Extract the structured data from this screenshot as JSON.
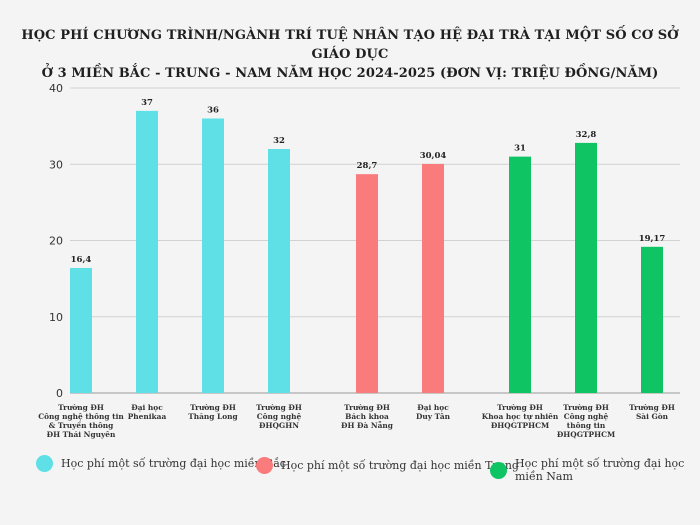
{
  "chart_data": {
    "type": "bar",
    "title_line1": "HỌC PHÍ CHƯƠNG TRÌNH/NGÀNH TRÍ TUỆ NHÂN TẠO HỆ ĐẠI TRÀ TẠI MỘT SỐ CƠ SỞ GIÁO DỤC",
    "title_line2": "Ở 3 MIỀN BẮC - TRUNG - NAM NĂM HỌC 2024-2025 (ĐƠN VỊ: TRIỆU ĐỒNG/NĂM)",
    "ylim": [
      0,
      40
    ],
    "yticks": [
      0,
      10,
      20,
      30,
      40
    ],
    "grid": true,
    "legend_position": "bottom",
    "series": [
      {
        "name": "Học phí một số trường đại học miền Bắc",
        "color": "#5ee0e6"
      },
      {
        "name": "Học phí một số trường đại học miền Trung",
        "color": "#fa7b7b"
      },
      {
        "name": "Học phí một số trường đại học miền Nam",
        "color": "#0ec463"
      }
    ],
    "bars": [
      {
        "label": [
          "Trường ĐH",
          "Công nghệ thông tin",
          "& Truyền thông",
          "ĐH Thái Nguyên"
        ],
        "value": 16.4,
        "display": "16,4",
        "series": 0
      },
      {
        "label": [
          "Đại học",
          "Phenikaa"
        ],
        "value": 37,
        "display": "37",
        "series": 0
      },
      {
        "label": [
          "Trường ĐH",
          "Thăng Long"
        ],
        "value": 36,
        "display": "36",
        "series": 0
      },
      {
        "label": [
          "Trường ĐH",
          "Công nghệ",
          "ĐHQGHN"
        ],
        "value": 32,
        "display": "32",
        "series": 0
      },
      {
        "label": [
          "Trường ĐH",
          "Bách khoa",
          "ĐH Đà Nẵng"
        ],
        "value": 28.7,
        "display": "28,7",
        "series": 1
      },
      {
        "label": [
          "Đại học",
          "Duy Tân"
        ],
        "value": 30.04,
        "display": "30,04",
        "series": 1
      },
      {
        "label": [
          "Trường ĐH",
          "Khoa học tự nhiên",
          "ĐHQGTPHCM"
        ],
        "value": 31,
        "display": "31",
        "series": 2
      },
      {
        "label": [
          "Trường ĐH",
          "Công nghệ",
          "thông tin",
          "ĐHQGTPHCM"
        ],
        "value": 32.8,
        "display": "32,8",
        "series": 2
      },
      {
        "label": [
          "Trường ĐH",
          "Sài Gòn"
        ],
        "value": 19.17,
        "display": "19,17",
        "series": 2
      }
    ]
  }
}
